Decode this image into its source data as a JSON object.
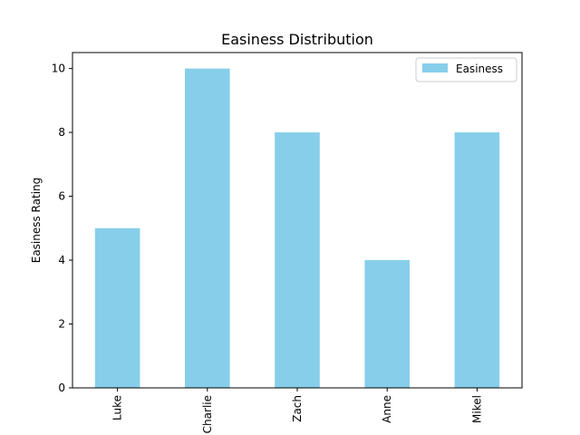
{
  "chart_data": {
    "type": "bar",
    "title": "Easiness Distribution",
    "xlabel": "",
    "ylabel": "Easiness Rating",
    "categories": [
      "Luke",
      "Charlie",
      "Zach",
      "Anne",
      "Mikel"
    ],
    "series": [
      {
        "name": "Easiness",
        "values": [
          5,
          10,
          8,
          4,
          8
        ],
        "color": "#87ceeb"
      }
    ],
    "ylim": [
      0,
      10.5
    ],
    "yticks": [
      0,
      2,
      4,
      6,
      8,
      10
    ],
    "grid": false,
    "legend_position": "top-right"
  }
}
